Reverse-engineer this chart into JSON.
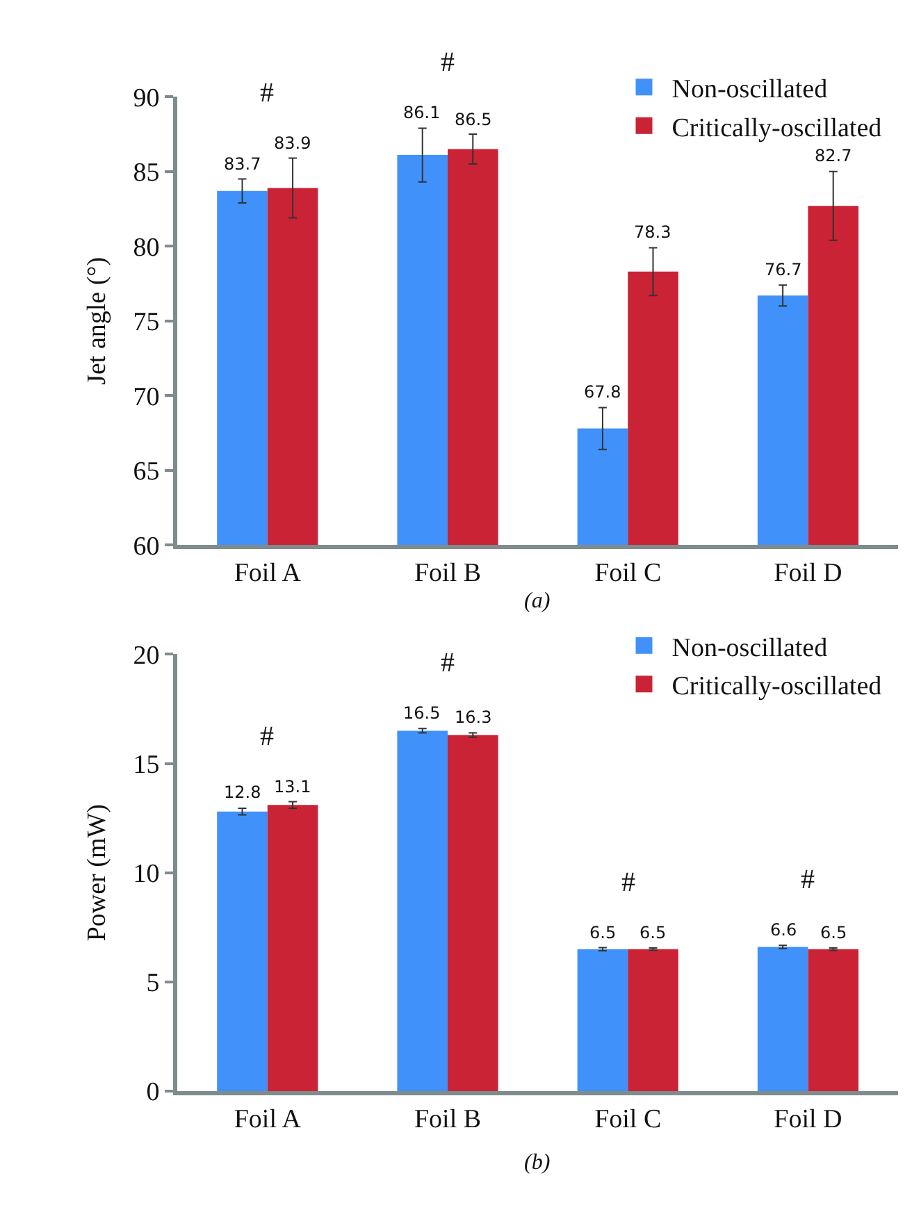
{
  "chart_data": [
    {
      "type": "bar",
      "ylabel": "Jet angle (°)",
      "categories": [
        "Foil A",
        "Foil B",
        "Foil C",
        "Foil D"
      ],
      "ylim": [
        60,
        90
      ],
      "yticks": [
        60,
        65,
        70,
        75,
        80,
        85,
        90
      ],
      "grid": false,
      "legend": "top right",
      "data_labels": true,
      "series": [
        {
          "name": "Non-oscillated",
          "color": "#4191fa",
          "values": [
            83.7,
            86.1,
            67.8,
            76.7
          ],
          "errors": [
            0.8,
            1.8,
            1.4,
            0.7
          ]
        },
        {
          "name": "Critically-oscillated",
          "color": "#c92335",
          "values": [
            83.9,
            86.5,
            78.3,
            82.7
          ],
          "errors": [
            2.0,
            1.0,
            1.6,
            2.3
          ]
        }
      ],
      "annotations": [
        "#",
        "#",
        "(a)"
      ]
    },
    {
      "type": "bar",
      "ylabel": "Power (mW)",
      "categories": [
        "Foil A",
        "Foil B",
        "Foil C",
        "Foil D"
      ],
      "ylim": [
        0,
        20
      ],
      "yticks": [
        0,
        5,
        10,
        15,
        20
      ],
      "grid": false,
      "legend": "top right",
      "data_labels": true,
      "series": [
        {
          "name": "Non-oscillated",
          "color": "#4191fa",
          "values": [
            12.8,
            16.5,
            6.5,
            6.6
          ],
          "errors": [
            0.15,
            0.1,
            0.07,
            0.07
          ]
        },
        {
          "name": "Critically-oscillated",
          "color": "#c92335",
          "values": [
            13.1,
            16.3,
            6.5,
            6.5
          ],
          "errors": [
            0.15,
            0.1,
            0.05,
            0.05
          ]
        }
      ],
      "annotations": [
        "#",
        "#",
        "#",
        "#",
        "(b)"
      ]
    }
  ]
}
